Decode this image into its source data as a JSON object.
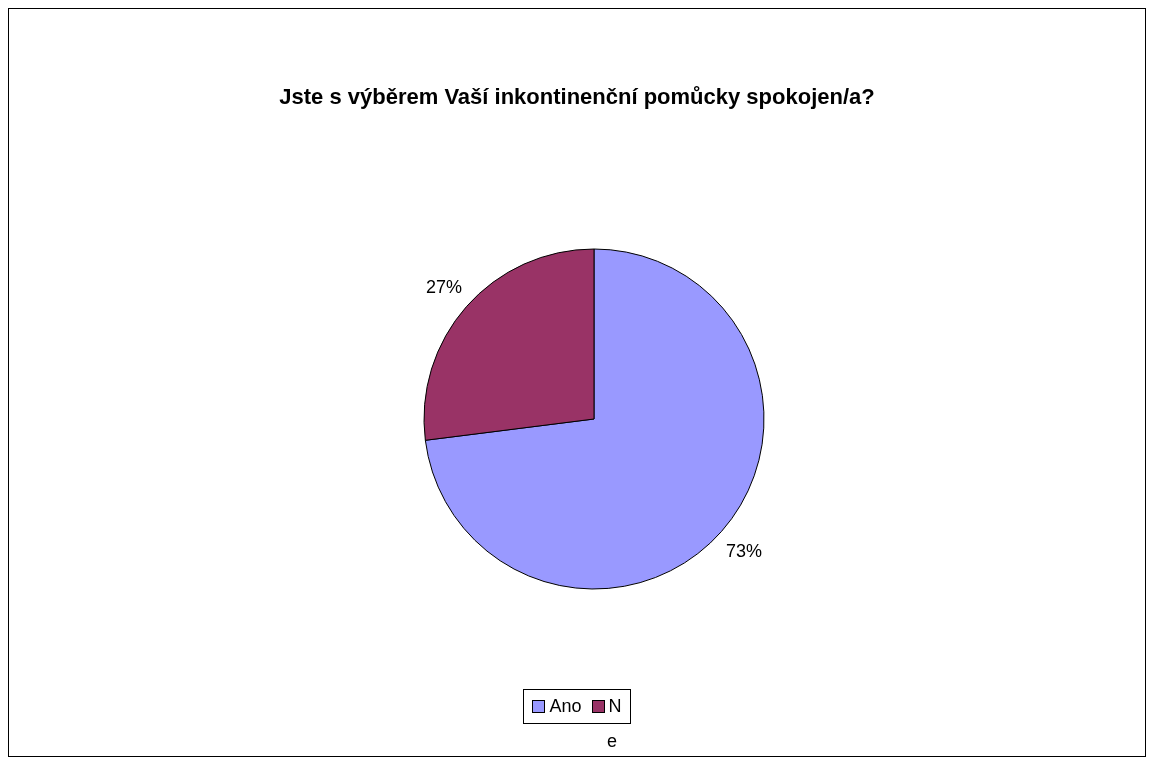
{
  "chart_data": {
    "type": "pie",
    "title": "Jste s výběrem Vaší inkontinenční pomůcky spokojen/a?",
    "categories": [
      "Ano",
      "N"
    ],
    "values": [
      73,
      27
    ],
    "colors": [
      "#9999ff",
      "#993366"
    ],
    "value_labels": [
      "73%",
      "27%"
    ],
    "legend": "bottom",
    "annotations": [
      "e"
    ]
  }
}
